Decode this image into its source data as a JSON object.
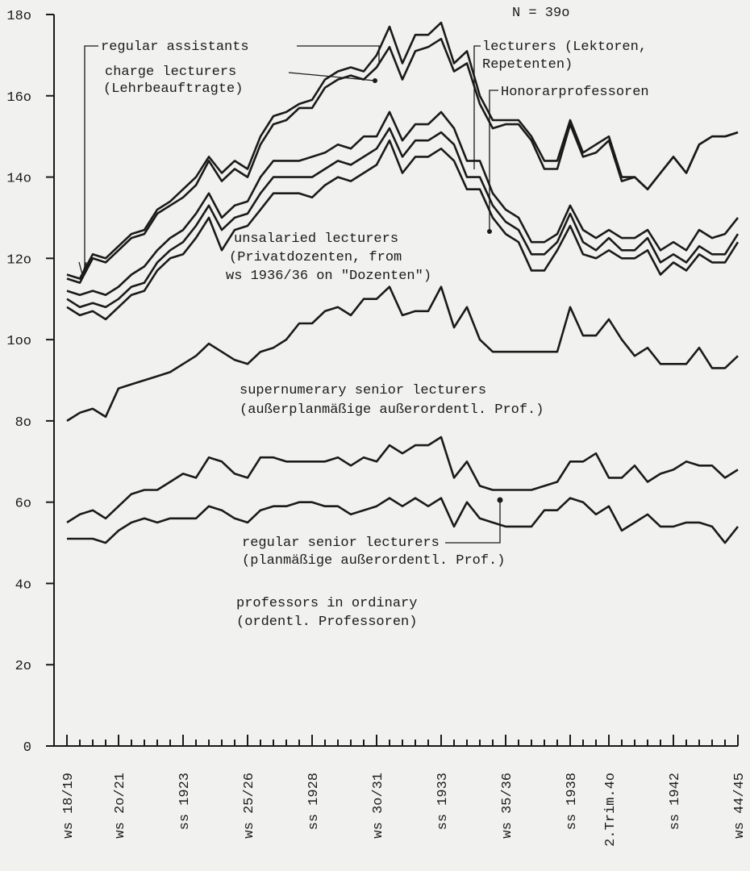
{
  "chart_data": {
    "type": "line",
    "stacked": true,
    "color": "#1a1a1a",
    "annotation": "N = 39o",
    "categories": [
      "ws 18/19",
      null,
      null,
      null,
      "ws 2o/21",
      null,
      null,
      null,
      null,
      "ss 1923",
      null,
      null,
      null,
      null,
      "ws 25/26",
      null,
      null,
      null,
      null,
      "ss 1928",
      null,
      null,
      null,
      null,
      "ws 3o/31",
      null,
      null,
      null,
      null,
      "ss 1933",
      null,
      null,
      null,
      null,
      "ws 35/36",
      null,
      null,
      null,
      null,
      "ss 1938",
      null,
      null,
      "2.Trim.4o",
      null,
      null,
      null,
      null,
      "ss 1942",
      null,
      null,
      null,
      null,
      "ws 44/45"
    ],
    "ylim": [
      0,
      180
    ],
    "yticks": [
      0,
      {
        "value": 20,
        "label": "2o"
      },
      {
        "value": 40,
        "label": "4o"
      },
      {
        "value": 60,
        "label": "6o"
      },
      {
        "value": 80,
        "label": "8o"
      },
      {
        "value": 100,
        "label": "1oo"
      },
      {
        "value": 120,
        "label": "12o"
      },
      {
        "value": 140,
        "label": "14o"
      },
      {
        "value": 160,
        "label": "16o"
      },
      {
        "value": 180,
        "label": "18o"
      }
    ],
    "series": [
      {
        "name": [
          "professors in ordinary",
          "(ordentl. Professoren)"
        ],
        "values": [
          51,
          51,
          51,
          50,
          53,
          55,
          56,
          55,
          56,
          56,
          56,
          59,
          58,
          56,
          55,
          58,
          59,
          59,
          60,
          60,
          59,
          59,
          57,
          58,
          59,
          61,
          59,
          61,
          59,
          61,
          54,
          60,
          56,
          55,
          54,
          54,
          54,
          58,
          58,
          61,
          60,
          57,
          59,
          53,
          55,
          57,
          54,
          54,
          55,
          55,
          54,
          50,
          54
        ]
      },
      {
        "name": [
          "regular senior lecturers",
          "(planmäßige außerordentl. Prof.)"
        ],
        "values": [
          4,
          6,
          7,
          6,
          6,
          7,
          7,
          8,
          9,
          11,
          10,
          12,
          12,
          11,
          11,
          13,
          12,
          11,
          10,
          10,
          11,
          12,
          12,
          13,
          11,
          13,
          13,
          13,
          15,
          15,
          12,
          10,
          8,
          8,
          9,
          9,
          9,
          6,
          7,
          9,
          10,
          15,
          7,
          13,
          14,
          8,
          13,
          14,
          15,
          14,
          15,
          16,
          14
        ]
      },
      {
        "name": [
          "supernumerary senior lecturers",
          "(außerplanmäßige außerordentl. Prof.)"
        ],
        "values": [
          25,
          25,
          25,
          25,
          29,
          27,
          27,
          28,
          27,
          27,
          30,
          28,
          27,
          28,
          28,
          26,
          27,
          30,
          34,
          34,
          37,
          37,
          37,
          39,
          40,
          39,
          34,
          33,
          33,
          37,
          37,
          38,
          36,
          34,
          34,
          34,
          34,
          33,
          32,
          38,
          31,
          29,
          39,
          34,
          27,
          33,
          27,
          26,
          24,
          29,
          24,
          27,
          28
        ]
      },
      {
        "name": [
          "unsalaried lecturers",
          "(Privatdozenten, from",
          "ws 1936/36 on \"Dozenten\")"
        ],
        "values": [
          28,
          24,
          24,
          24,
          20,
          22,
          22,
          26,
          28,
          27,
          29,
          31,
          25,
          32,
          34,
          35,
          38,
          36,
          32,
          31,
          31,
          32,
          33,
          31,
          33,
          36,
          35,
          38,
          38,
          34,
          41,
          29,
          37,
          33,
          29,
          27,
          20,
          20,
          25,
          20,
          20,
          19,
          17,
          20,
          24,
          24,
          22,
          25,
          23,
          23,
          26,
          26,
          28
        ]
      },
      {
        "name": [
          "Honorarprofessoren"
        ],
        "values": [
          2,
          2,
          2,
          3,
          2,
          2,
          2,
          2,
          2,
          3,
          3,
          3,
          5,
          3,
          3,
          4,
          4,
          4,
          4,
          5,
          4,
          4,
          4,
          4,
          4,
          3,
          4,
          4,
          4,
          4,
          4,
          3,
          3,
          3,
          3,
          3,
          4,
          4,
          2,
          3,
          3,
          2,
          3,
          2,
          2,
          3,
          3,
          2,
          2,
          2,
          2,
          2,
          2
        ]
      },
      {
        "name": [
          "lecturers (Lektoren,",
          "Repetenten)"
        ],
        "values": [
          2,
          3,
          3,
          3,
          3,
          3,
          4,
          3,
          3,
          3,
          3,
          3,
          3,
          3,
          3,
          4,
          4,
          4,
          4,
          5,
          4,
          4,
          4,
          5,
          3,
          4,
          4,
          4,
          4,
          5,
          4,
          4,
          4,
          3,
          3,
          3,
          3,
          3,
          2,
          2,
          3,
          3,
          2,
          3,
          3,
          2,
          3,
          3,
          3,
          4,
          4,
          5,
          4
        ]
      },
      {
        "name": [
          "charge lecturers",
          "(Lehrbeauftragte)"
        ],
        "values": [
          3,
          3,
          8,
          8,
          9,
          9,
          8,
          9,
          8,
          8,
          7,
          8,
          9,
          9,
          6,
          8,
          9,
          10,
          13,
          12,
          16,
          16,
          18,
          14,
          17,
          16,
          15,
          18,
          19,
          18,
          14,
          24,
          14,
          16,
          21,
          23,
          25,
          18,
          16,
          20,
          18,
          21,
          22,
          14,
          15,
          10,
          19,
          21,
          19,
          21,
          25,
          24,
          21
        ]
      },
      {
        "name": [
          "regular assistants"
        ],
        "values": [
          1,
          1,
          1,
          1,
          1,
          1,
          1,
          1,
          1,
          2,
          2,
          1,
          2,
          2,
          2,
          2,
          2,
          2,
          1,
          2,
          2,
          2,
          2,
          2,
          3,
          5,
          4,
          4,
          3,
          4,
          2,
          3,
          2,
          2,
          1,
          1,
          1,
          2,
          2,
          1,
          1,
          2,
          1,
          1,
          0,
          0,
          0,
          0,
          0,
          0,
          0,
          0,
          0
        ]
      }
    ]
  }
}
